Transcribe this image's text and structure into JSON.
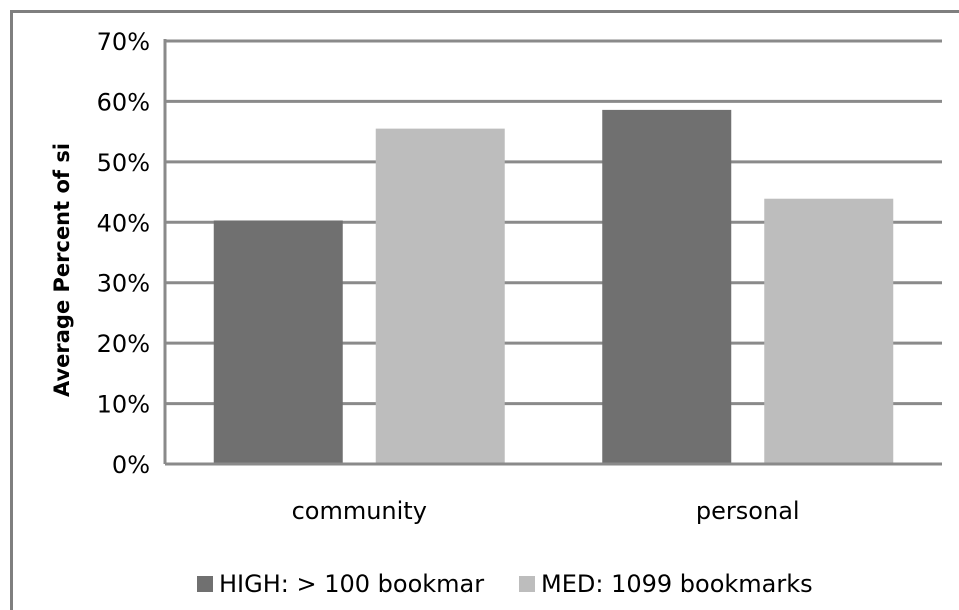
{
  "chart_data": {
    "type": "bar",
    "title": "",
    "xlabel": "",
    "ylabel": "Average Percent of si",
    "ylim": [
      0,
      70
    ],
    "yticks": [
      "0%",
      "10%",
      "20%",
      "30%",
      "40%",
      "50%",
      "60%",
      "70%"
    ],
    "grid": true,
    "legend_position": "bottom",
    "categories": [
      "community",
      "personal"
    ],
    "series": [
      {
        "name": "HIGH: > 100 bookmar",
        "color": "#707070",
        "values": [
          40.3,
          58.6
        ]
      },
      {
        "name": "MED: 1099 bookmarks",
        "color": "#bdbdbd",
        "values": [
          55.5,
          43.9
        ]
      }
    ]
  }
}
